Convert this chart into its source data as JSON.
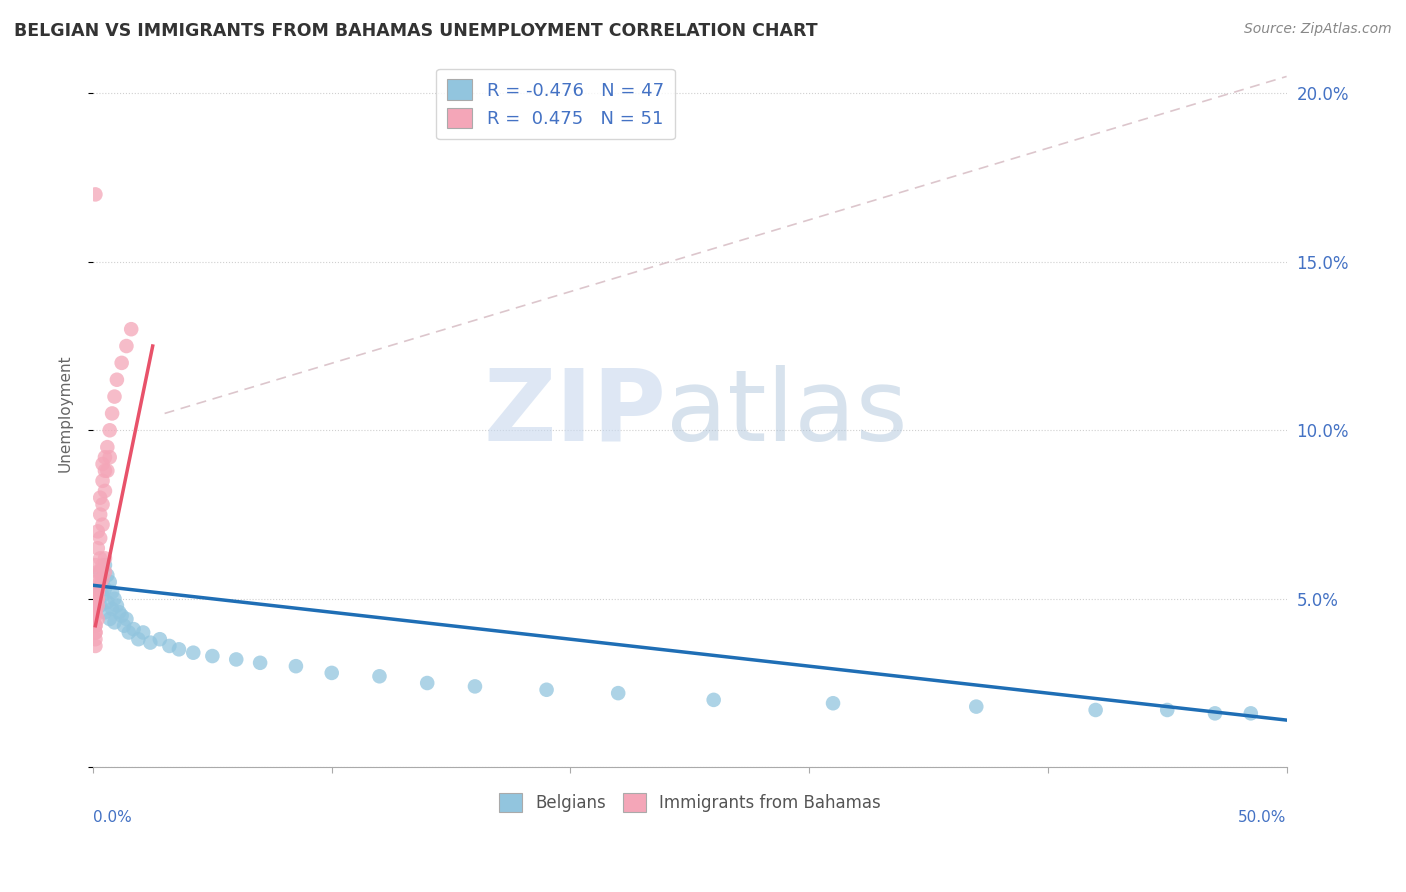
{
  "title": "BELGIAN VS IMMIGRANTS FROM BAHAMAS UNEMPLOYMENT CORRELATION CHART",
  "source": "Source: ZipAtlas.com",
  "ylabel": "Unemployment",
  "xlim": [
    0.0,
    0.5
  ],
  "ylim": [
    0.0,
    0.21
  ],
  "yticks": [
    0.0,
    0.05,
    0.1,
    0.15,
    0.2
  ],
  "ytick_labels_right": [
    "",
    "5.0%",
    "10.0%",
    "15.0%",
    "20.0%"
  ],
  "xtick_left_label": "0.0%",
  "xtick_right_label": "50.0%",
  "legend_r_belgian": "-0.476",
  "legend_n_belgian": 47,
  "legend_r_bahamas": "0.475",
  "legend_n_bahamas": 51,
  "blue_color": "#92c5de",
  "pink_color": "#f4a6b8",
  "trend_blue_color": "#1f6eb5",
  "trend_pink_color": "#e8526a",
  "diag_color": "#d4b8c0",
  "grid_color": "#d0d0d0",
  "watermark_zip_color": "#c8d8ee",
  "watermark_atlas_color": "#a8c0d8",
  "title_color": "#333333",
  "source_color": "#888888",
  "right_axis_color": "#4472c4",
  "legend_label_color": "#4472c4",
  "bottom_legend_label_color": "#555555",
  "belgian_x": [
    0.002,
    0.003,
    0.003,
    0.004,
    0.004,
    0.005,
    0.005,
    0.005,
    0.006,
    0.006,
    0.007,
    0.007,
    0.008,
    0.008,
    0.009,
    0.009,
    0.01,
    0.011,
    0.012,
    0.013,
    0.014,
    0.015,
    0.017,
    0.019,
    0.021,
    0.024,
    0.028,
    0.032,
    0.036,
    0.042,
    0.05,
    0.06,
    0.07,
    0.085,
    0.1,
    0.12,
    0.14,
    0.16,
    0.19,
    0.22,
    0.26,
    0.31,
    0.37,
    0.42,
    0.45,
    0.47,
    0.485
  ],
  "belgian_y": [
    0.052,
    0.058,
    0.048,
    0.055,
    0.051,
    0.06,
    0.053,
    0.046,
    0.057,
    0.049,
    0.055,
    0.044,
    0.052,
    0.047,
    0.05,
    0.043,
    0.048,
    0.046,
    0.045,
    0.042,
    0.044,
    0.04,
    0.041,
    0.038,
    0.04,
    0.037,
    0.038,
    0.036,
    0.035,
    0.034,
    0.033,
    0.032,
    0.031,
    0.03,
    0.028,
    0.027,
    0.025,
    0.024,
    0.023,
    0.022,
    0.02,
    0.019,
    0.018,
    0.017,
    0.017,
    0.016,
    0.016
  ],
  "bahamas_x": [
    0.001,
    0.001,
    0.001,
    0.001,
    0.001,
    0.002,
    0.002,
    0.002,
    0.002,
    0.003,
    0.003,
    0.003,
    0.003,
    0.004,
    0.004,
    0.004,
    0.004,
    0.005,
    0.005,
    0.005,
    0.006,
    0.006,
    0.007,
    0.007,
    0.008,
    0.009,
    0.01,
    0.012,
    0.014,
    0.016,
    0.001,
    0.001,
    0.002,
    0.002,
    0.003,
    0.003,
    0.004,
    0.004,
    0.005,
    0.005,
    0.001,
    0.002,
    0.002,
    0.003,
    0.001,
    0.001,
    0.001,
    0.002,
    0.001,
    0.001,
    0.001
  ],
  "bahamas_y": [
    0.05,
    0.055,
    0.048,
    0.06,
    0.045,
    0.065,
    0.058,
    0.07,
    0.052,
    0.075,
    0.068,
    0.08,
    0.062,
    0.085,
    0.078,
    0.09,
    0.072,
    0.092,
    0.082,
    0.088,
    0.095,
    0.088,
    0.1,
    0.092,
    0.105,
    0.11,
    0.115,
    0.12,
    0.125,
    0.13,
    0.042,
    0.046,
    0.048,
    0.052,
    0.054,
    0.058,
    0.056,
    0.06,
    0.058,
    0.062,
    0.04,
    0.044,
    0.05,
    0.055,
    0.038,
    0.042,
    0.046,
    0.05,
    0.036,
    0.04,
    0.17
  ],
  "pink_trend_x": [
    0.001,
    0.025
  ],
  "pink_trend_y": [
    0.042,
    0.125
  ],
  "blue_trend_x": [
    0.0,
    0.5
  ],
  "blue_trend_y": [
    0.054,
    0.014
  ],
  "diag_line_x": [
    0.03,
    0.5
  ],
  "diag_line_y": [
    0.105,
    0.205
  ]
}
